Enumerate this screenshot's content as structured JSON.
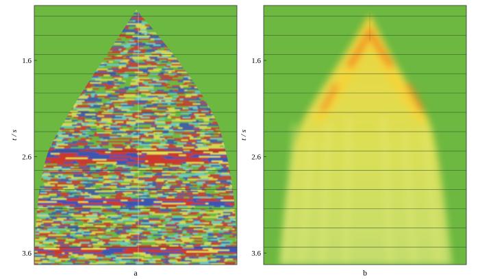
{
  "chart_data": [
    {
      "type": "heatmap",
      "panel_label": "a",
      "ylabel": "t / s",
      "yticks": [
        1.6,
        2.6,
        3.6
      ],
      "ylim": [
        1.03,
        3.72
      ],
      "gridlines": [
        1.14,
        1.34,
        1.54,
        1.74,
        1.94,
        2.14,
        2.34,
        2.54,
        2.74,
        2.94,
        3.14,
        3.34,
        3.54,
        3.72
      ],
      "background_color": "#6cb840",
      "colors": {
        "red": "#d0312d",
        "blue": "#3a4fb8",
        "yellow": "#e8e05a",
        "cyan": "#6fd0d8",
        "green": "#6cb840"
      },
      "description_events": [
        {
          "t": 2.54,
          "strength": 0.9
        },
        {
          "t": 2.62,
          "strength": 0.8
        },
        {
          "t": 3.06,
          "strength": 0.85
        },
        {
          "t": 3.56,
          "strength": 0.8
        }
      ]
    },
    {
      "type": "heatmap",
      "panel_label": "b",
      "ylabel": "t / s",
      "yticks": [
        1.6,
        2.6,
        3.6
      ],
      "ylim": [
        1.03,
        3.72
      ],
      "gridlines": [
        1.14,
        1.34,
        1.54,
        1.74,
        1.94,
        2.14,
        2.34,
        2.54,
        2.74,
        2.94,
        3.14,
        3.34,
        3.54,
        3.72
      ],
      "background_color": "#6cb840",
      "colors": {
        "peak": "#f08a20",
        "high": "#f5d43a",
        "low": "#e6ec7a",
        "background": "#6cb840"
      }
    }
  ]
}
